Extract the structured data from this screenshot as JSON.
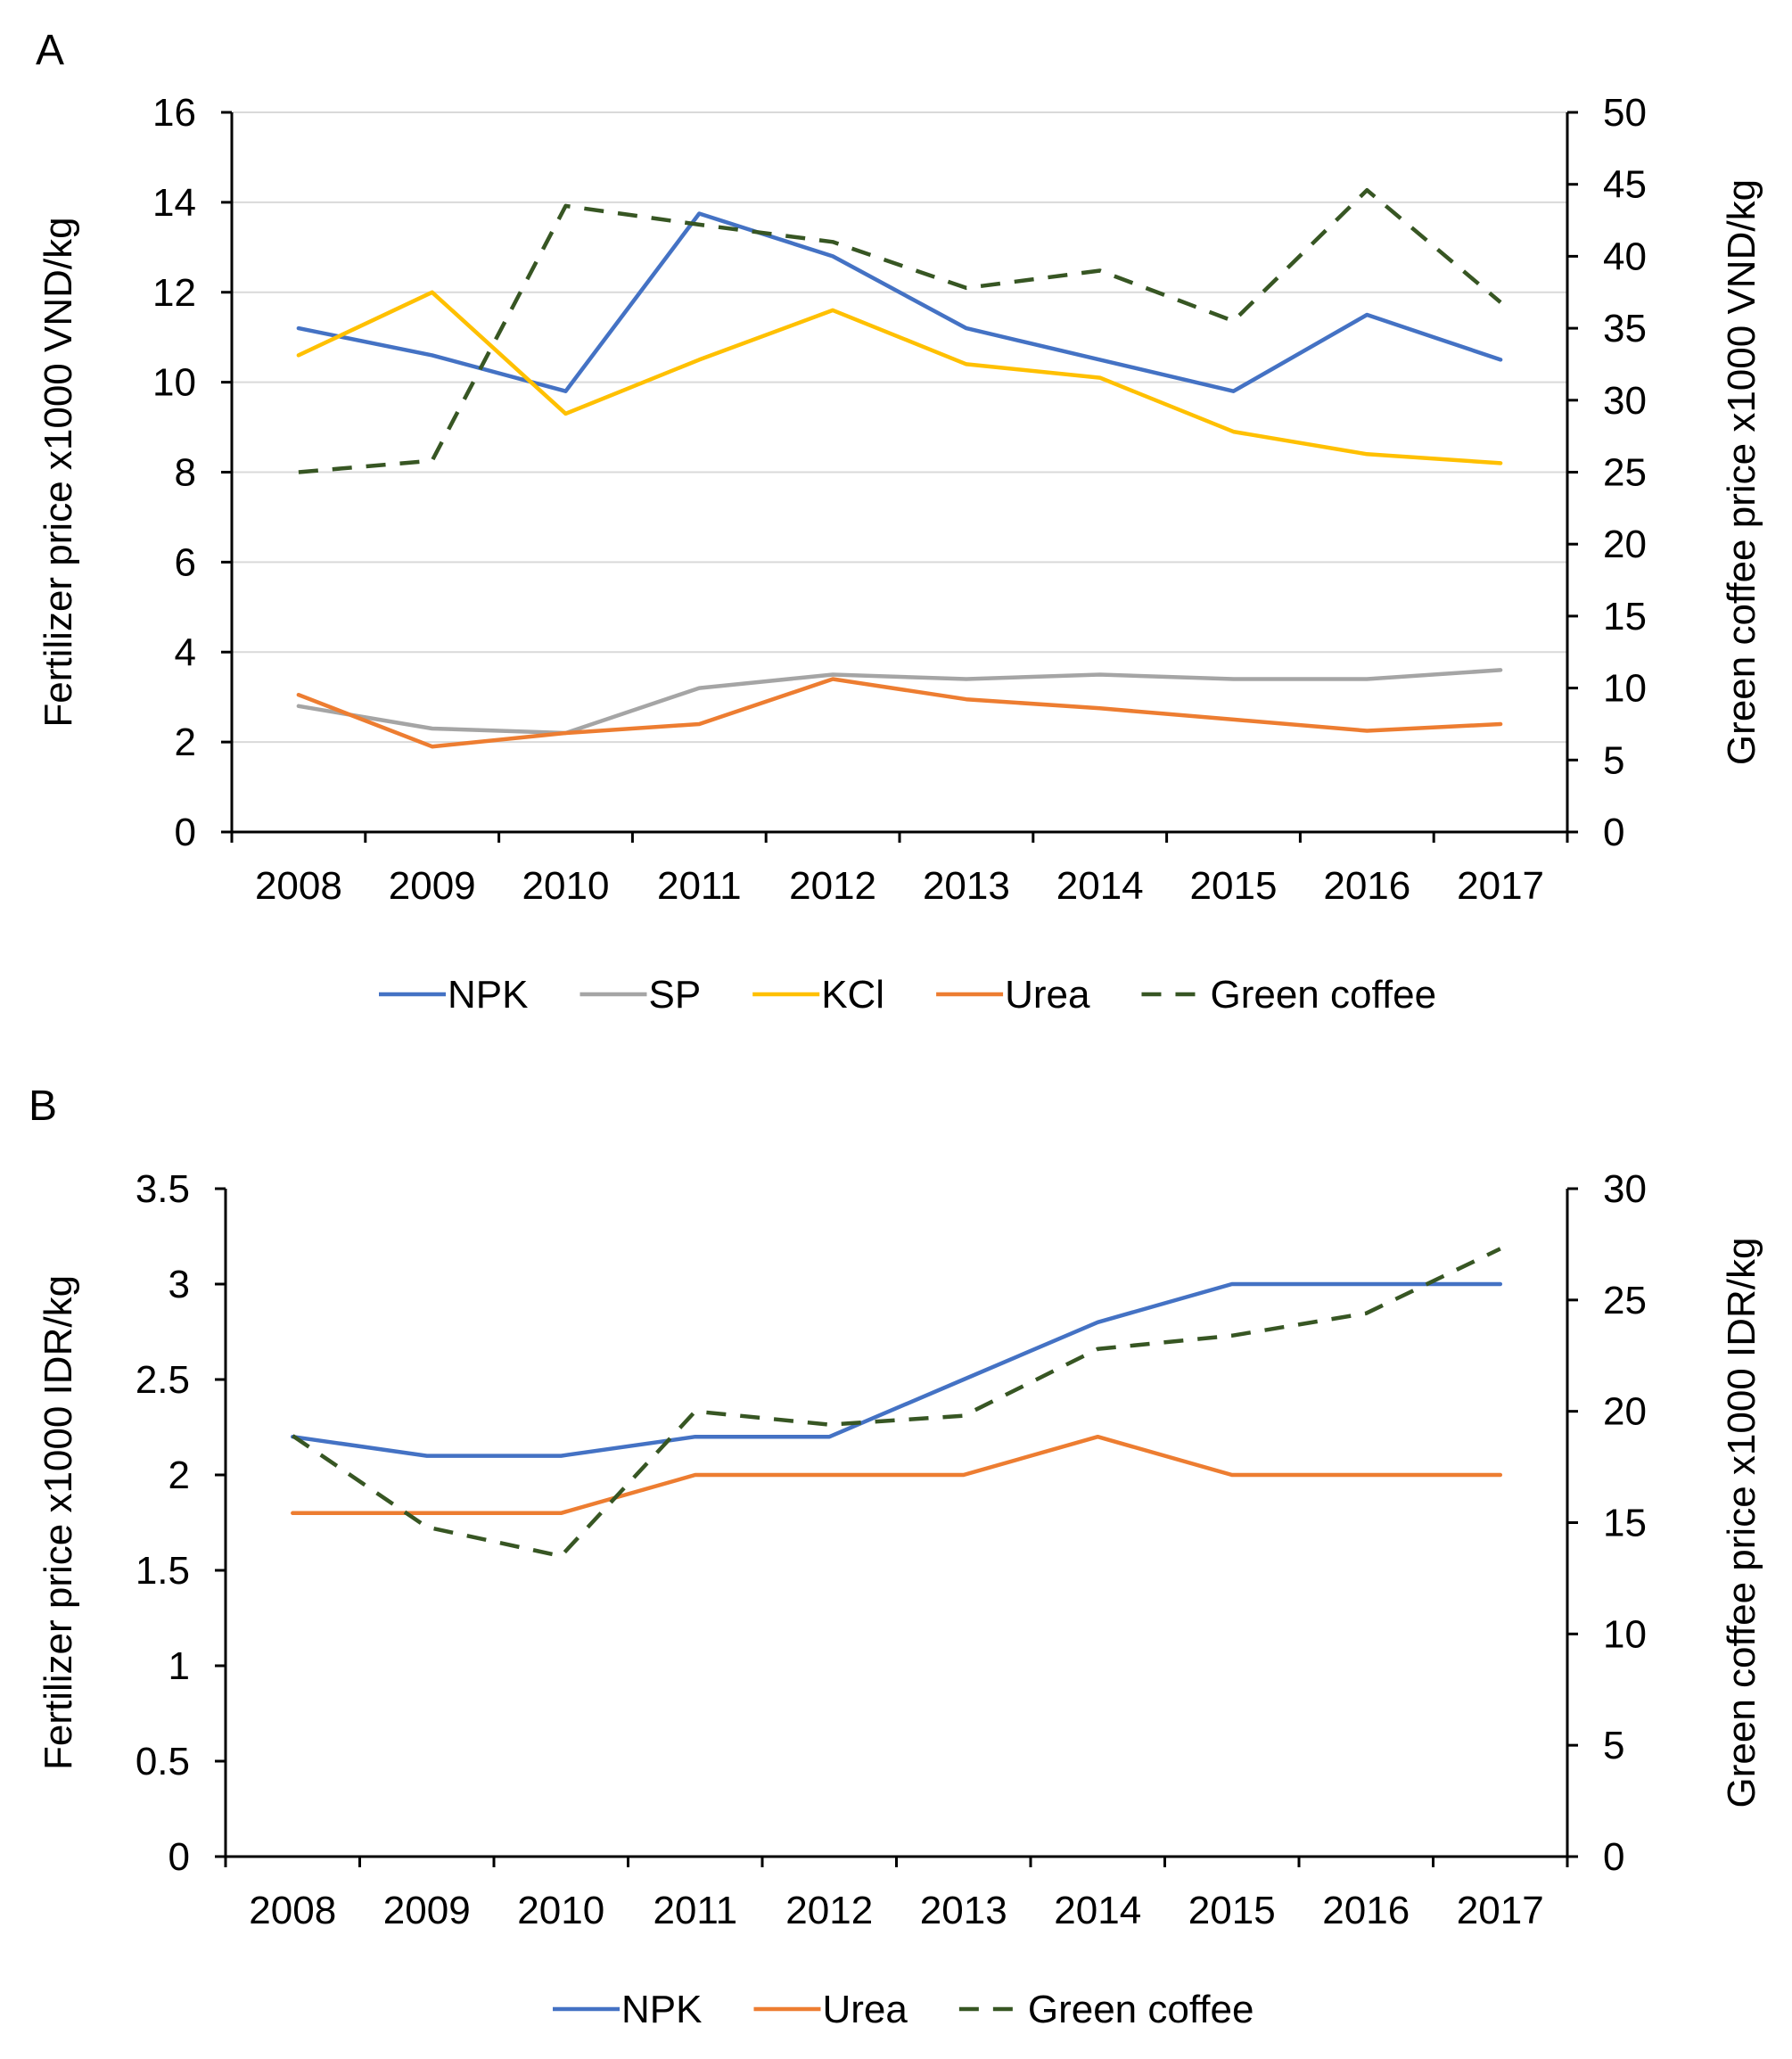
{
  "chart_data": [
    {
      "panel": "A",
      "type": "line",
      "categories": [
        "2008",
        "2009",
        "2010",
        "2011",
        "2012",
        "2013",
        "2014",
        "2015",
        "2016",
        "2017"
      ],
      "ylabel": "Fertilizer price x1000 VND/kg",
      "ylabel_right": "Green coffee price x1000 VND/kg",
      "ylim": [
        0,
        16
      ],
      "yticks": [
        "0",
        "2",
        "4",
        "6",
        "8",
        "10",
        "12",
        "14",
        "16"
      ],
      "ylim_right": [
        0,
        50
      ],
      "yticks_right": [
        "0",
        "5",
        "10",
        "15",
        "20",
        "25",
        "30",
        "35",
        "40",
        "45",
        "50"
      ],
      "grid": true,
      "legend_position": "bottom",
      "series": [
        {
          "name": "NPK",
          "axis": "left",
          "color": "#4472C4",
          "dashed": false,
          "values": [
            11.2,
            10.6,
            9.8,
            13.75,
            12.8,
            11.2,
            10.5,
            9.8,
            11.5,
            10.5
          ]
        },
        {
          "name": "SP",
          "axis": "left",
          "color": "#A5A5A5",
          "dashed": false,
          "values": [
            2.8,
            2.3,
            2.2,
            3.2,
            3.5,
            3.4,
            3.5,
            3.4,
            3.4,
            3.6
          ]
        },
        {
          "name": "KCl",
          "axis": "left",
          "color": "#FFC000",
          "dashed": false,
          "values": [
            10.6,
            12.0,
            9.3,
            10.5,
            11.6,
            10.4,
            10.1,
            8.9,
            8.4,
            8.2
          ]
        },
        {
          "name": "Urea",
          "axis": "left",
          "color": "#ED7D31",
          "dashed": false,
          "values": [
            3.05,
            1.9,
            2.2,
            2.4,
            3.4,
            2.95,
            2.75,
            2.5,
            2.25,
            2.4
          ]
        },
        {
          "name": "Green coffee",
          "axis": "right",
          "color": "#375623",
          "dashed": true,
          "values": [
            25,
            25.8,
            43.5,
            42.2,
            41.0,
            37.8,
            39.0,
            35.5,
            44.6,
            36.8
          ]
        }
      ]
    },
    {
      "panel": "B",
      "type": "line",
      "categories": [
        "2008",
        "2009",
        "2010",
        "2011",
        "2012",
        "2013",
        "2014",
        "2015",
        "2016",
        "2017"
      ],
      "ylabel": "Fertilizer price x1000 IDR/kg",
      "ylabel_right": "Green coffee price x1000 IDR/kg",
      "ylim": [
        0,
        3.5
      ],
      "yticks": [
        "0",
        "0.5",
        "1",
        "1.5",
        "2",
        "2.5",
        "3",
        "3.5"
      ],
      "ylim_right": [
        0,
        30
      ],
      "yticks_right": [
        "0",
        "5",
        "10",
        "15",
        "20",
        "25",
        "30"
      ],
      "grid": false,
      "legend_position": "bottom",
      "series": [
        {
          "name": "NPK",
          "axis": "left",
          "color": "#4472C4",
          "dashed": false,
          "values": [
            2.2,
            2.1,
            2.1,
            2.2,
            2.2,
            2.5,
            2.8,
            3.0,
            3.0,
            3.0
          ]
        },
        {
          "name": "Urea",
          "axis": "left",
          "color": "#ED7D31",
          "dashed": false,
          "values": [
            1.8,
            1.8,
            1.8,
            2.0,
            2.0,
            2.0,
            2.2,
            2.0,
            2.0,
            2.0
          ]
        },
        {
          "name": "Green coffee",
          "axis": "right",
          "color": "#375623",
          "dashed": true,
          "values": [
            18.9,
            14.8,
            13.5,
            20.0,
            19.4,
            19.8,
            22.8,
            23.4,
            24.4,
            27.3
          ]
        }
      ]
    }
  ]
}
